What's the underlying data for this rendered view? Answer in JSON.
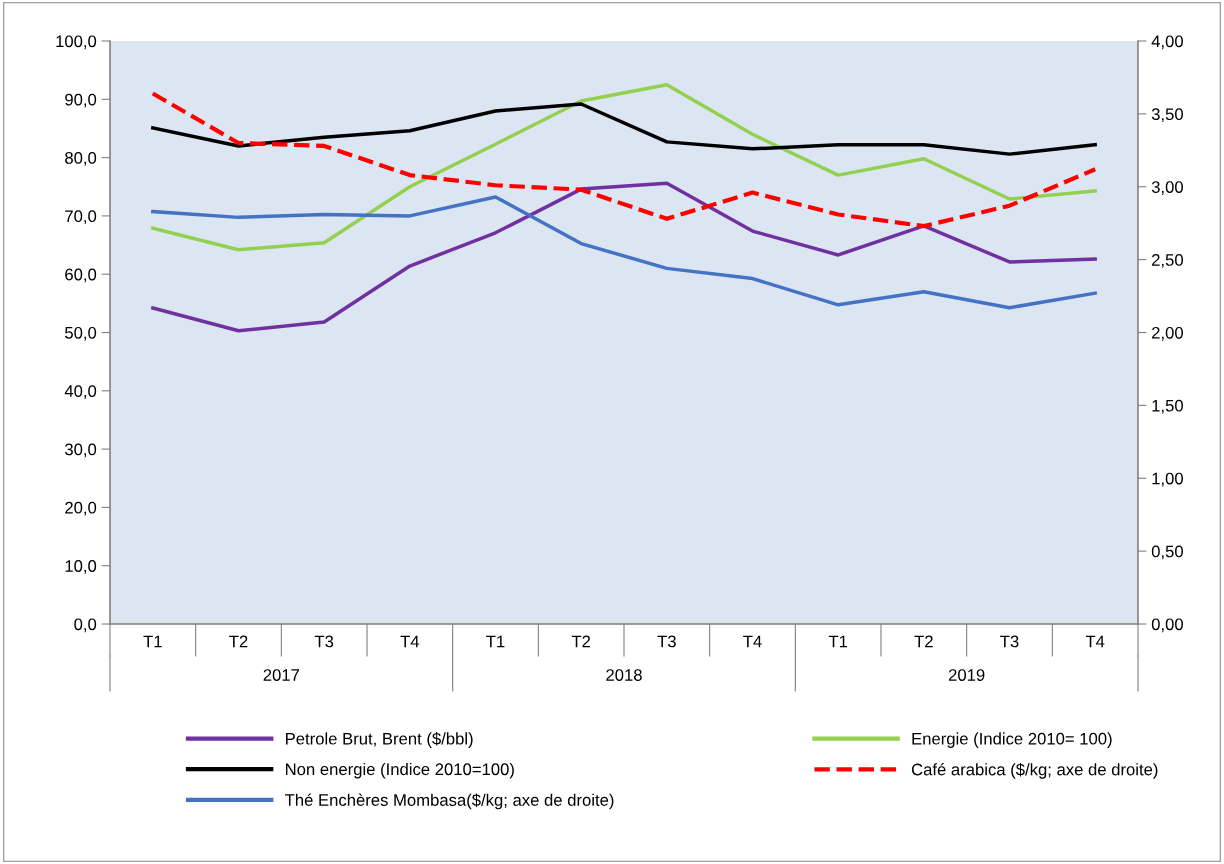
{
  "chart_data": {
    "type": "line",
    "categories": [
      "T1",
      "T2",
      "T3",
      "T4",
      "T1",
      "T2",
      "T3",
      "T4",
      "T1",
      "T2",
      "T3",
      "T4"
    ],
    "annotations": [
      "2017",
      "2018",
      "2019"
    ],
    "series": [
      {
        "name": "Petrole Brut, Brent ($/bbl)",
        "color": "#7030a0",
        "values": [
          54.2,
          50.3,
          51.8,
          61.4,
          67.1,
          74.6,
          75.6,
          67.4,
          63.3,
          68.3,
          62.1,
          62.6
        ]
      },
      {
        "name": "Energie (Indice 2010= 100)",
        "color": "#92d050",
        "values": [
          67.9,
          64.2,
          65.4,
          75.0,
          82.3,
          89.7,
          92.5,
          84.0,
          77.0,
          79.8,
          72.9,
          74.3
        ]
      },
      {
        "name": "Non energie (Indice 2010=100)",
        "color": "#000000",
        "values": [
          85.1,
          82.0,
          83.5,
          84.6,
          88.0,
          89.2,
          82.7,
          81.5,
          82.2,
          82.2,
          80.6,
          82.2
        ]
      },
      {
        "name": "Café arabica ($/kg; axe de droite)",
        "color": "#ff0000",
        "axis": "y2",
        "line_style": "dashed",
        "values": [
          3.64,
          3.3,
          3.28,
          3.08,
          3.01,
          2.98,
          2.78,
          2.96,
          2.81,
          2.73,
          2.87,
          3.12
        ]
      },
      {
        "name": "Thé Enchères Mombasa($/kg; axe de droite)",
        "color": "#4472c4",
        "values": [
          2.83,
          2.79,
          2.81,
          2.8,
          2.93,
          2.61,
          2.44,
          2.37,
          2.19,
          2.28,
          2.17,
          2.27
        ],
        "axis": "y2"
      }
    ],
    "ylim": [
      0,
      100
    ],
    "yticks": [
      {
        "value": 0,
        "label": "0,0"
      },
      {
        "value": 10,
        "label": "10,0"
      },
      {
        "value": 20,
        "label": "20,0"
      },
      {
        "value": 30,
        "label": "30,0"
      },
      {
        "value": 40,
        "label": "40,0"
      },
      {
        "value": 50,
        "label": "50,0"
      },
      {
        "value": 60,
        "label": "60,0"
      },
      {
        "value": 70,
        "label": "70,0"
      },
      {
        "value": 80,
        "label": "80,0"
      },
      {
        "value": 90,
        "label": "90,0"
      },
      {
        "value": 100,
        "label": "100,0"
      }
    ],
    "y2lim": [
      0,
      4
    ],
    "y2ticks": [
      {
        "value": 0,
        "label": "0,00"
      },
      {
        "value": 0.5,
        "label": "0,50"
      },
      {
        "value": 1,
        "label": "1,00"
      },
      {
        "value": 1.5,
        "label": "1,50"
      },
      {
        "value": 2,
        "label": "2,00"
      },
      {
        "value": 2.5,
        "label": "2,50"
      },
      {
        "value": 3,
        "label": "3,00"
      },
      {
        "value": 3.5,
        "label": "3,50"
      },
      {
        "value": 4,
        "label": "4,00"
      }
    ],
    "grid": false,
    "legend": "bottom",
    "marker": "none"
  }
}
